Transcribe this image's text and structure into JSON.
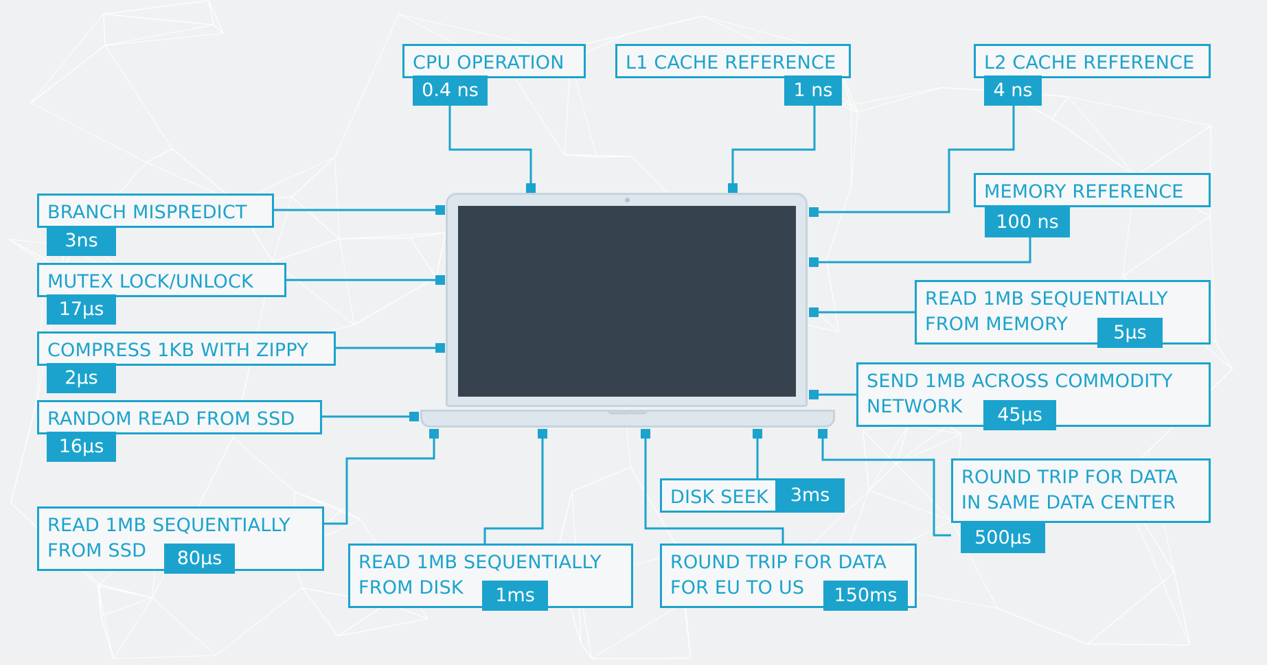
{
  "items": {
    "cpu": {
      "label": [
        "CPU OPERATION"
      ],
      "value": "0.4 ns"
    },
    "l1": {
      "label": [
        "L1 CACHE REFERENCE"
      ],
      "value": "1 ns"
    },
    "l2": {
      "label": [
        "L2 CACHE REFERENCE"
      ],
      "value": "4 ns"
    },
    "branch": {
      "label": [
        "BRANCH MISPREDICT"
      ],
      "value": "3ns"
    },
    "mutex": {
      "label": [
        "MUTEX LOCK/UNLOCK"
      ],
      "value": "17µs"
    },
    "compress": {
      "label": [
        "COMPRESS 1KB WITH ZIPPY"
      ],
      "value": "2µs"
    },
    "ssd_random": {
      "label": [
        "RANDOM READ FROM SSD"
      ],
      "value": "16µs"
    },
    "ssd_seq": {
      "label": [
        "READ 1MB SEQUENTIALLY",
        "FROM SSD"
      ],
      "value": "80µs"
    },
    "disk_seq": {
      "label": [
        "READ 1MB SEQUENTIALLY",
        "FROM DISK"
      ],
      "value": "1ms"
    },
    "disk_seek": {
      "label": [
        "DISK SEEK"
      ],
      "value": "3ms"
    },
    "eu_us": {
      "label": [
        "ROUND TRIP FOR DATA",
        "FOR EU TO US"
      ],
      "value": "150ms"
    },
    "memory_ref": {
      "label": [
        "MEMORY REFERENCE"
      ],
      "value": "100 ns"
    },
    "mem_seq": {
      "label": [
        "READ 1MB SEQUENTIALLY",
        "FROM MEMORY"
      ],
      "value": "5µs"
    },
    "network": {
      "label": [
        "SEND 1MB ACROSS COMMODITY",
        "NETWORK"
      ],
      "value": "45µs"
    },
    "datacenter": {
      "label": [
        "ROUND TRIP FOR DATA",
        "IN SAME DATA CENTER"
      ],
      "value": "500µs"
    }
  },
  "colors": {
    "accent": "#1ba3cd",
    "screen": "#36424e",
    "background": "#f0f1f2"
  }
}
